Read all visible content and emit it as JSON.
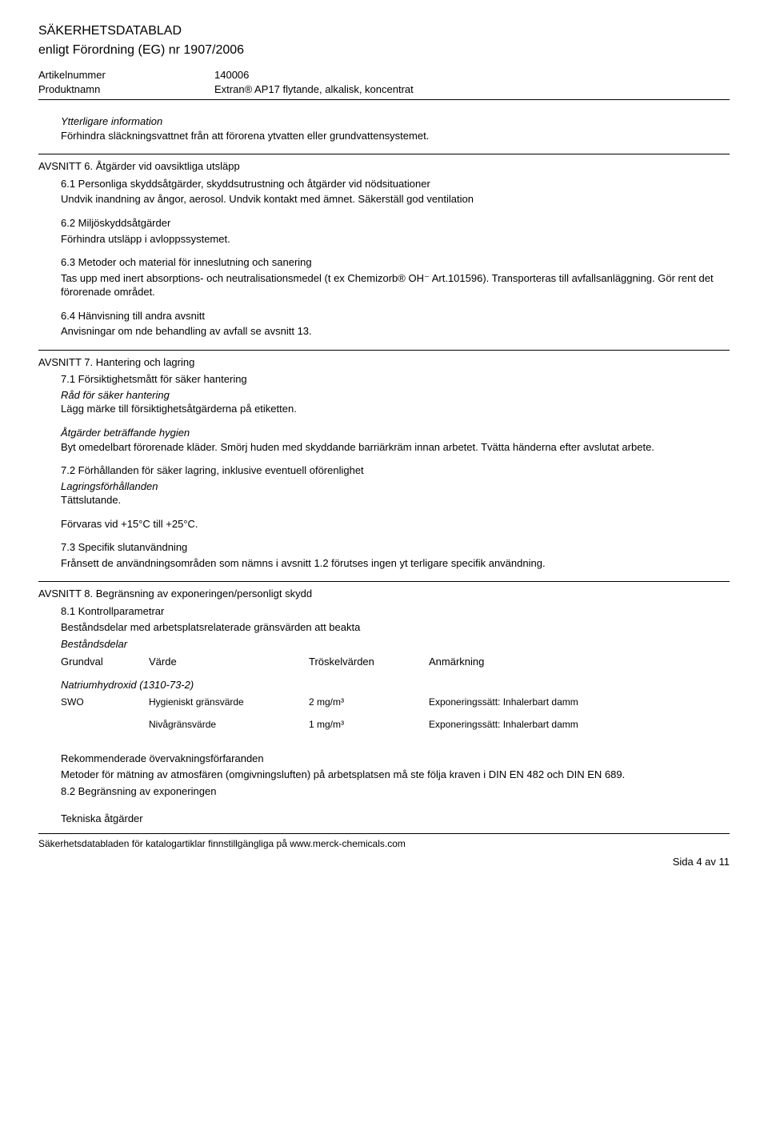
{
  "header": {
    "title": "SÄKERHETSDATABLAD",
    "subtitle": "enligt Förordning (EG) nr 1907/2006",
    "article_label": "Artikelnummer",
    "article_value": "140006",
    "product_label": "Produktnamn",
    "product_value": "Extran® AP17 flytande, alkalisk, koncentrat"
  },
  "further_info": {
    "heading": "Ytterligare information",
    "text": "Förhindra släckningsvattnet från att förorena ytvatten eller grundvattensystemet."
  },
  "section6": {
    "title": "AVSNITT 6. Åtgärder vid oavsiktliga utsläpp",
    "s61_title": "6.1 Personliga skyddsåtgärder, skyddsutrustning och åtgärder vid nödsituationer",
    "s61_text": "Undvik inandning av ångor, aerosol. Undvik kontakt med ämnet. Säkerställ god ventilation",
    "s62_title": "6.2 Miljöskyddsåtgärder",
    "s62_text": "Förhindra utsläpp i avloppssystemet.",
    "s63_title": "6.3 Metoder och material för inneslutning och sanering",
    "s63_text": "Tas upp med inert absorptions- och neutralisationsmedel (t ex Chemizorb® OH⁻ Art.101596). Transporteras  till  avfallsanläggning.  Gör  rent det  förorenade området.",
    "s64_title": "6.4 Hänvisning till andra avsnitt",
    "s64_text": "Anvisningar om nde behandling av avfall se avsnitt 13."
  },
  "section7": {
    "title": "AVSNITT 7. Hantering och lagring",
    "s71_title": "7.1 Försiktighetsmått för säker hantering",
    "s71_sub1": "Råd för säker hantering",
    "s71_text1": "Lägg märke till försiktighetsåtgärderna på etiketten.",
    "s71_sub2": "Åtgärder beträffande hygien",
    "s71_text2": "Byt omedelbart förorenade kläder. Smörj huden med skyddande barriärkräm innan arbetet. Tvätta händerna efter avslutat arbete.",
    "s72_title": "7.2 Förhållanden för säker lagring, inklusive eventuell oförenlighet",
    "s72_sub": "Lagringsförhållanden",
    "s72_text1": "Tättslutande.",
    "s72_text2": "Förvaras vid +15°C till +25°C.",
    "s73_title": "7.3 Specifik slutanvändning",
    "s73_text": "Frånsett de användningsområden som nämns i avsnitt 1.2 förutses ingen yt terligare specifik användning."
  },
  "section8": {
    "title": "AVSNITT 8. Begränsning av exponeringen/personligt skydd",
    "s81_title": "8.1 Kontrollparametrar",
    "s81_sub1": "Beståndsdelar med arbetsplatsrelaterade gränsvärden att beakta",
    "components_label": "Beståndsdelar",
    "table_headers": {
      "basis": "Grundval",
      "value": "Värde",
      "threshold": "Tröskelvärden",
      "note": "Anmärkning"
    },
    "substance": "Natriumhydroxid (1310-73-2)",
    "rows": [
      {
        "basis": "SWO",
        "value": "Hygieniskt gränsvärde",
        "threshold": "2 mg/m³",
        "note": "Exponeringssätt: Inhalerbart damm"
      },
      {
        "basis": "",
        "value": "Nivågränsvärde",
        "threshold": "1 mg/m³",
        "note": "Exponeringssätt: Inhalerbart damm"
      }
    ],
    "rec_heading": "Rekommenderade övervakningsförfaranden",
    "rec_text": "Metoder för mätning av atmosfären (omgivningsluften) på arbetsplatsen må ste följa kraven i DIN EN 482 och DIN EN 689.",
    "s82_title": "8.2 Begränsning av exponeringen",
    "tech_heading": "Tekniska åtgärder"
  },
  "footer": {
    "left": "Säkerhetsdatabladen för katalogartiklar finnstillgängliga på www.merck-chemicals.com",
    "right": "Sida 4 av 11"
  }
}
